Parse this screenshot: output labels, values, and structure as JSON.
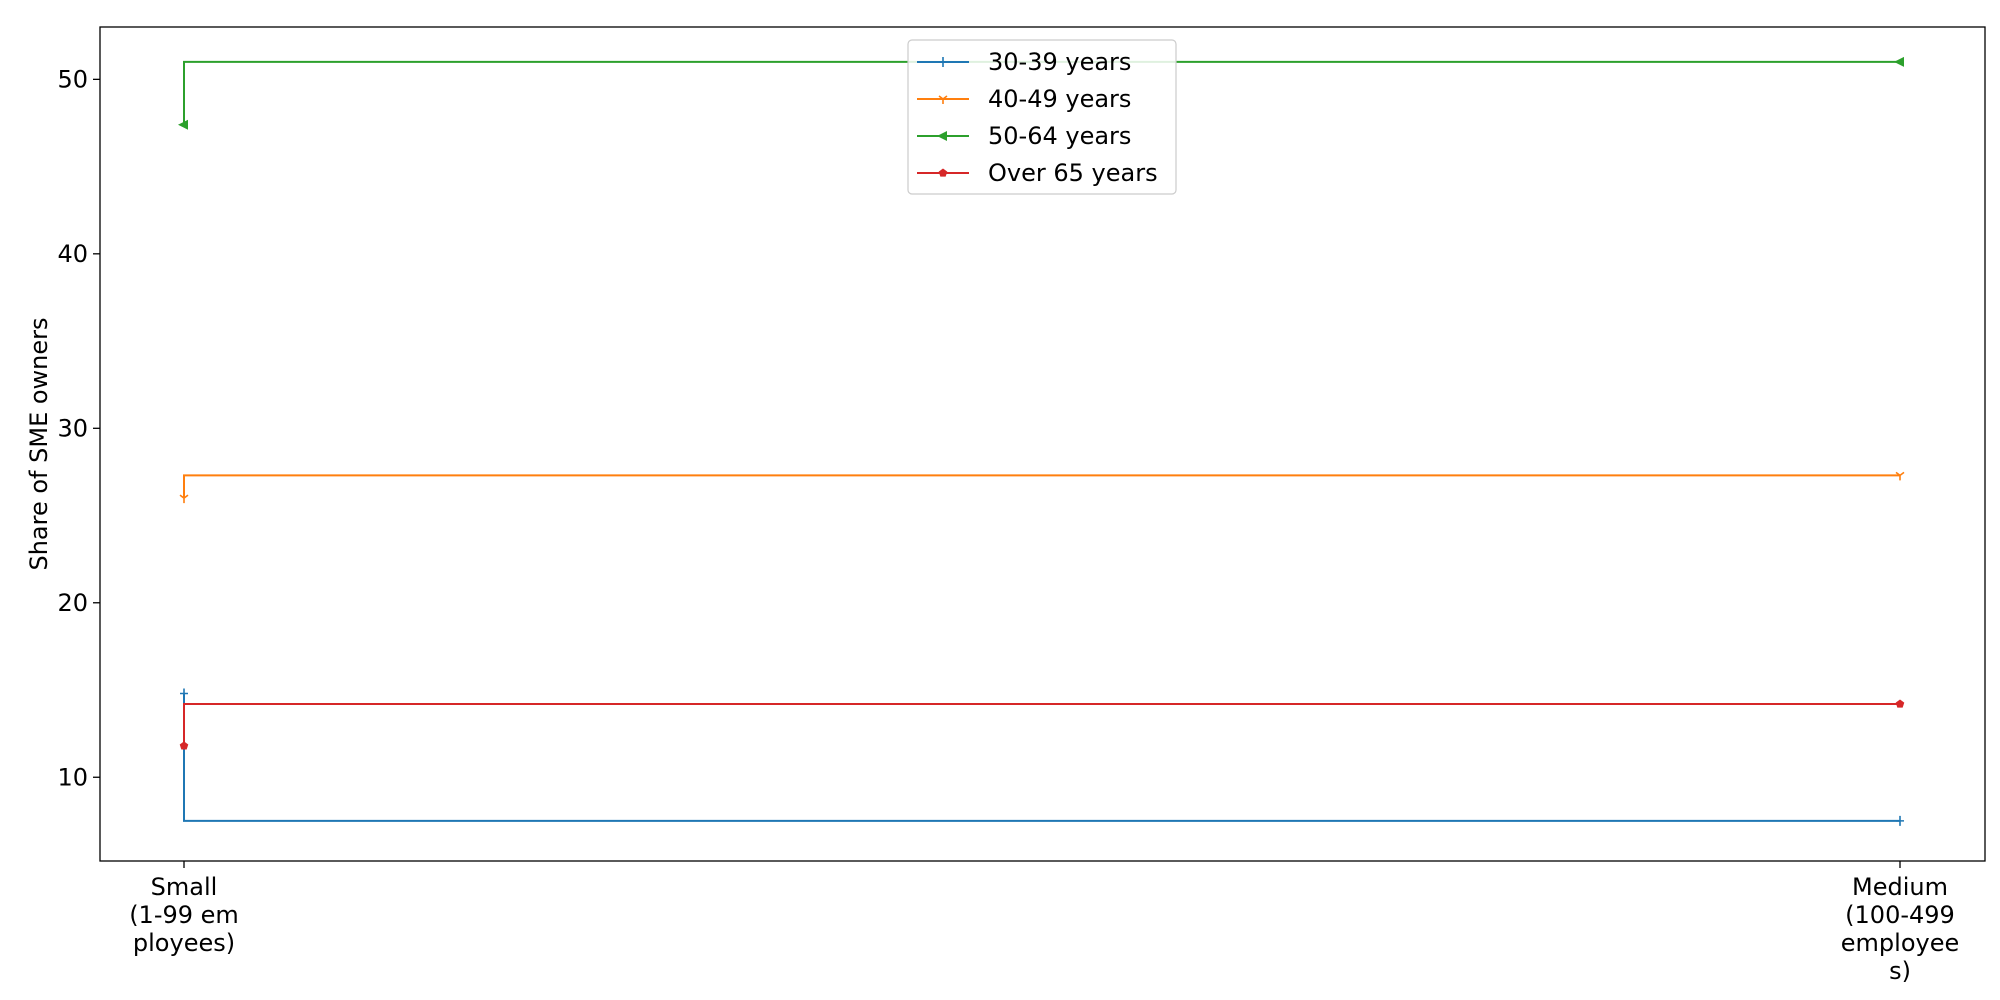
{
  "chart_data": {
    "type": "line",
    "step": "pre",
    "categories": [
      [
        "Small",
        "(1-99 em",
        "ployees)"
      ],
      [
        "Medium",
        "(100-499",
        "employee",
        "s)"
      ]
    ],
    "ylabel": "Share of SME owners",
    "xlabel": "",
    "ylim": [
      5.2,
      53.0
    ],
    "yticks": [
      10,
      20,
      30,
      40,
      50
    ],
    "legend_position": "upper center",
    "grid": false,
    "series": [
      {
        "name": "30-39 years",
        "values": [
          14.8,
          7.5
        ],
        "color": "#1f77b4",
        "marker": "plus"
      },
      {
        "name": "40-49 years",
        "values": [
          26.0,
          27.3
        ],
        "color": "#ff7f0e",
        "marker": "tri_down"
      },
      {
        "name": "50-64 years",
        "values": [
          47.4,
          51.0
        ],
        "color": "#2ca02c",
        "marker": "triangle_left"
      },
      {
        "name": "Over 65 years",
        "values": [
          11.8,
          14.2
        ],
        "color": "#d62728",
        "marker": "pentagon"
      }
    ]
  }
}
